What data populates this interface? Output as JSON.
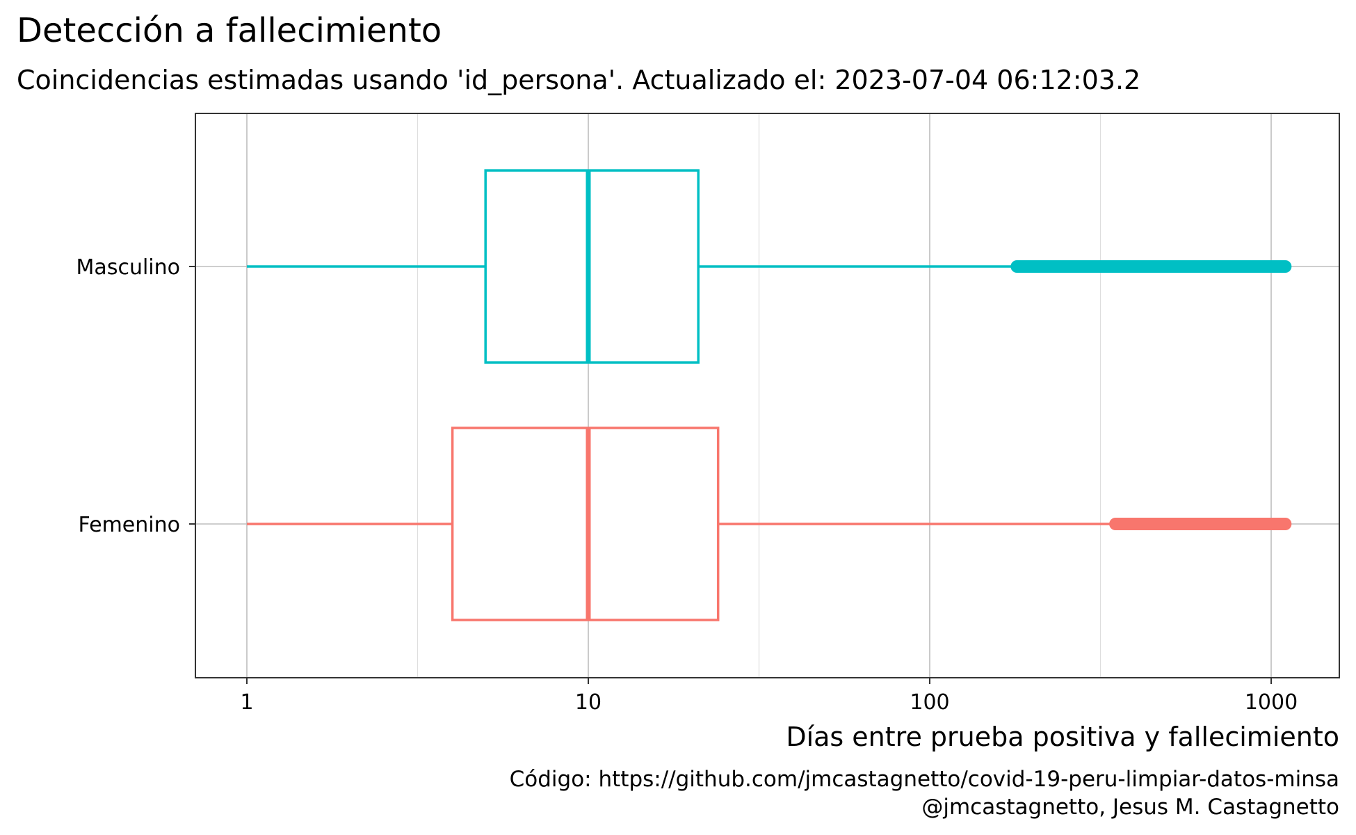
{
  "chart_data": {
    "type": "boxplot",
    "orientation": "horizontal",
    "title": "Detección a fallecimiento",
    "subtitle": "Coincidencias estimadas usando 'id_persona'. Actualizado el: 2023-07-04 06:12:03.2",
    "xlabel": "Días entre prueba positiva y fallecimiento",
    "ylabel": "",
    "x_scale": "log10",
    "xlim": [
      0.7,
      1500
    ],
    "x_ticks": [
      1,
      10,
      100,
      1000
    ],
    "x_tick_labels": [
      "1",
      "10",
      "100",
      "1000"
    ],
    "grid": true,
    "legend": "none",
    "categories": [
      "Masculino",
      "Femenino"
    ],
    "series": [
      {
        "category": "Masculino",
        "color": "#00BFC4",
        "whisker_low": 1,
        "q1": 5,
        "median": 10,
        "q3": 21,
        "whisker_high": 180,
        "outliers_range": [
          180,
          1100
        ]
      },
      {
        "category": "Femenino",
        "color": "#F8766D",
        "whisker_low": 1,
        "q1": 4,
        "median": 10,
        "q3": 24,
        "whisker_high": 350,
        "outliers_range": [
          350,
          1100
        ]
      }
    ],
    "caption_lines": [
      "Código: https://github.com/jmcastagnetto/covid-19-peru-limpiar-datos-minsa",
      "@jmcastagnetto, Jesus M. Castagnetto"
    ]
  }
}
